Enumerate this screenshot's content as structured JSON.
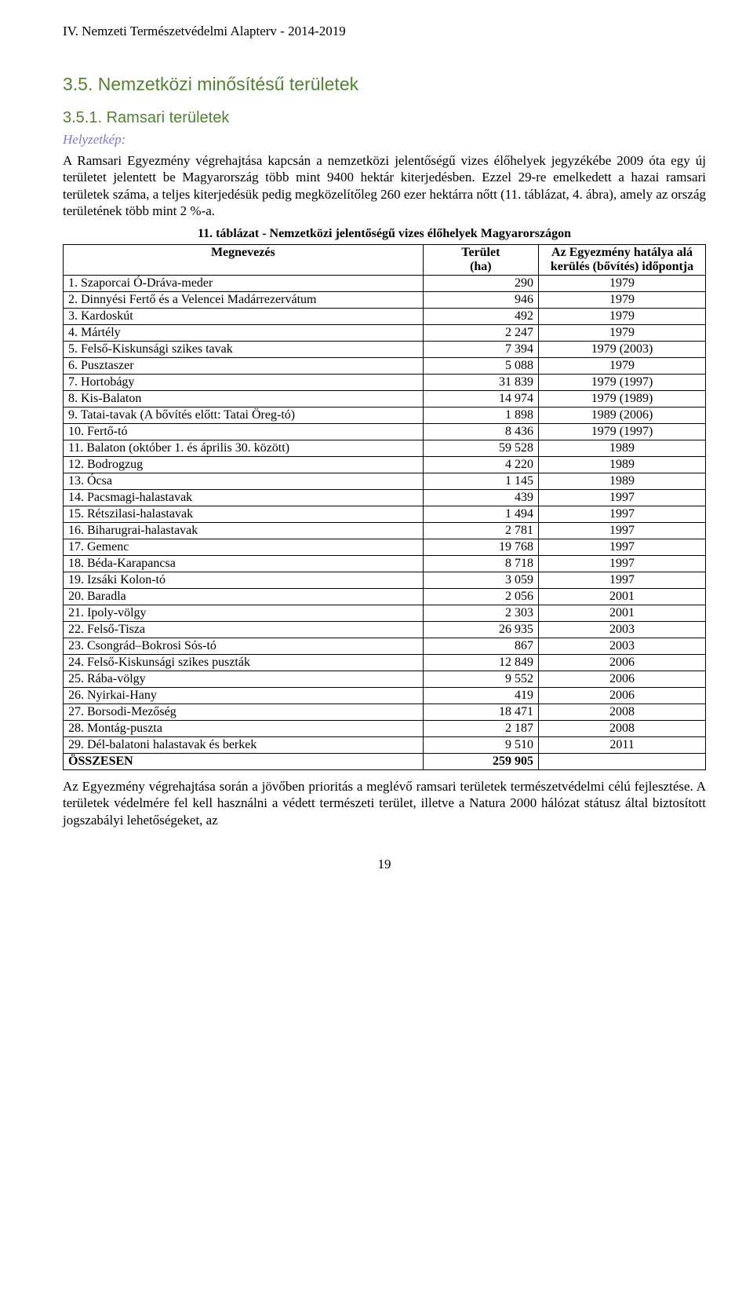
{
  "header": {
    "running": "IV. Nemzeti Természetvédelmi Alapterv - 2014-2019"
  },
  "section": {
    "title": "3.5. Nemzetközi minősítésű területek",
    "subsection_num": "3.5.1. Ramsari területek",
    "helyzetkep_label": "Helyzetkép:",
    "para1": "A Ramsari Egyezmény végrehajtása kapcsán a nemzetközi jelentőségű vizes élőhelyek jegyzékébe 2009 óta egy új területet jelentett be Magyarország több mint 9400 hektár kiterjedésben. Ezzel 29-re emelkedett a hazai ramsari területek száma, a teljes kiterjedésük pedig megközelítőleg 260 ezer hektárra nőtt (11. táblázat, 4. ábra), amely az ország területének több mint 2 %-a.",
    "para2": "Az Egyezmény végrehajtása során a jövőben prioritás a meglévő ramsari területek természetvédelmi célú fejlesztése. A területek védelmére fel kell használni a védett természeti terület, illetve a Natura 2000 hálózat státusz által biztosított jogszabályi lehetőségeket, az"
  },
  "table": {
    "caption": "11. táblázat - Nemzetközi jelentőségű vizes élőhelyek Magyarországon",
    "columns": {
      "c1": "Megnevezés",
      "c2": "Terület\n(ha)",
      "c3": "Az Egyezmény hatálya alá kerülés (bővítés) időpontja"
    },
    "rows": [
      {
        "name": "1. Szaporcai Ó-Dráva-meder",
        "area": "290",
        "date": "1979"
      },
      {
        "name": "2. Dinnyési Fertő és a Velencei Madárrezervátum",
        "area": "946",
        "date": "1979"
      },
      {
        "name": "3. Kardoskút",
        "area": "492",
        "date": "1979"
      },
      {
        "name": "4. Mártély",
        "area": "2 247",
        "date": "1979"
      },
      {
        "name": "5. Felső-Kiskunsági szikes tavak",
        "area": "7 394",
        "date": "1979 (2003)"
      },
      {
        "name": "6. Pusztaszer",
        "area": "5 088",
        "date": "1979"
      },
      {
        "name": "7. Hortobágy",
        "area": "31 839",
        "date": "1979 (1997)"
      },
      {
        "name": "8. Kis-Balaton",
        "area": "14 974",
        "date": "1979 (1989)"
      },
      {
        "name": "9. Tatai-tavak (A bővítés előtt: Tatai Öreg-tó)",
        "area": "1 898",
        "date": "1989 (2006)"
      },
      {
        "name": "10. Fertő-tó",
        "area": "8 436",
        "date": "1979 (1997)"
      },
      {
        "name": "11. Balaton (október 1. és április 30. között)",
        "area": "59 528",
        "date": "1989"
      },
      {
        "name": "12. Bodrogzug",
        "area": "4 220",
        "date": "1989"
      },
      {
        "name": "13. Ócsa",
        "area": "1 145",
        "date": "1989"
      },
      {
        "name": "14. Pacsmagi-halastavak",
        "area": "439",
        "date": "1997"
      },
      {
        "name": "15. Rétszilasi-halastavak",
        "area": "1 494",
        "date": "1997"
      },
      {
        "name": "16. Biharugrai-halastavak",
        "area": "2 781",
        "date": "1997"
      },
      {
        "name": "17. Gemenc",
        "area": "19 768",
        "date": "1997"
      },
      {
        "name": "18. Béda-Karapancsa",
        "area": "8 718",
        "date": "1997"
      },
      {
        "name": "19. Izsáki Kolon-tó",
        "area": "3 059",
        "date": "1997"
      },
      {
        "name": "20. Baradla",
        "area": "2 056",
        "date": "2001"
      },
      {
        "name": "21. Ipoly-völgy",
        "area": "2 303",
        "date": "2001"
      },
      {
        "name": "22. Felső-Tisza",
        "area": "26 935",
        "date": "2003"
      },
      {
        "name": "23. Csongrád–Bokrosi Sós-tó",
        "area": "867",
        "date": "2003"
      },
      {
        "name": "24. Felső-Kiskunsági szikes puszták",
        "area": "12 849",
        "date": "2006"
      },
      {
        "name": "25. Rába-völgy",
        "area": "9 552",
        "date": "2006"
      },
      {
        "name": "26. Nyirkai-Hany",
        "area": "419",
        "date": "2006"
      },
      {
        "name": "27. Borsodi-Mezőség",
        "area": "18 471",
        "date": "2008"
      },
      {
        "name": "28. Montág-puszta",
        "area": "2 187",
        "date": "2008"
      },
      {
        "name": "29. Dél-balatoni halastavak és berkek",
        "area": "9 510",
        "date": "2011"
      }
    ],
    "total": {
      "label": "ÖSSZESEN",
      "area": "259 905",
      "date": ""
    },
    "col_widths": {
      "c1": "56%",
      "c2": "18%",
      "c3": "26%"
    }
  },
  "footer": {
    "page_number": "19"
  },
  "styling": {
    "heading_color": "#538135",
    "helyzetkep_color": "#7b7bc0",
    "body_font": "Times New Roman",
    "heading_font": "Arial",
    "body_fontsize_pt": 12,
    "heading_fontsize_pt": 16,
    "background_color": "#ffffff",
    "text_color": "#000000",
    "table_border_color": "#000000"
  }
}
